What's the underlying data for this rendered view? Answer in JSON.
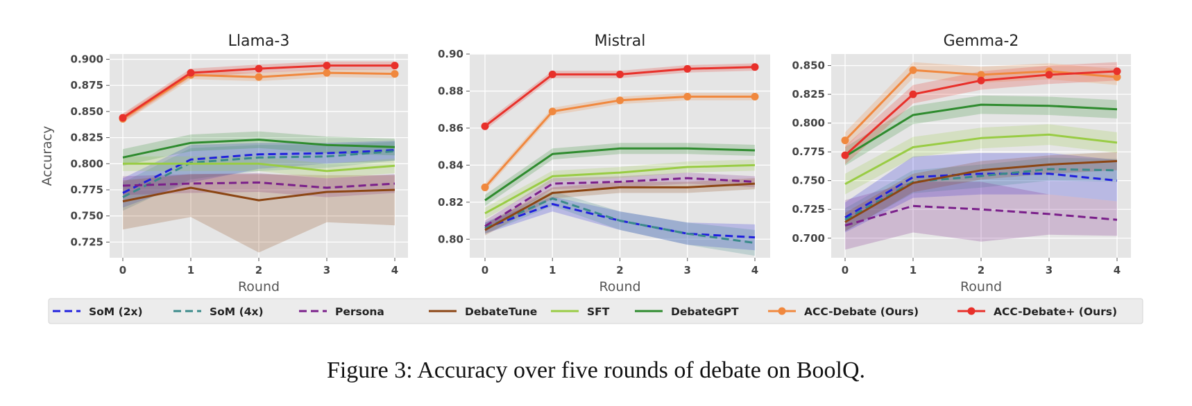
{
  "caption": "Figure 3: Accuracy over five rounds of debate on BoolQ.",
  "legend_placement": "bottom",
  "chart_data": [
    {
      "type": "line",
      "title": "Llama-3",
      "xlabel": "Round",
      "ylabel": "Accuracy",
      "x": [
        0,
        1,
        2,
        3,
        4
      ],
      "xticks": [
        "0",
        "1",
        "2",
        "3",
        "4"
      ],
      "ylim": [
        0.71,
        0.905
      ],
      "yticks": [
        "0.725",
        "0.750",
        "0.775",
        "0.800",
        "0.825",
        "0.850",
        "0.875",
        "0.900"
      ],
      "grid": true,
      "series": [
        {
          "name": "SoM (2x)",
          "color": "#1f1fdd",
          "dash": true,
          "values": [
            0.772,
            0.804,
            0.809,
            0.81,
            0.813
          ],
          "low": [
            0.758,
            0.782,
            0.795,
            0.8,
            0.803
          ],
          "high": [
            0.786,
            0.818,
            0.82,
            0.82,
            0.822
          ]
        },
        {
          "name": "SoM (4x)",
          "color": "#3a8a8a",
          "dash": true,
          "values": [
            0.768,
            0.801,
            0.806,
            0.807,
            0.812
          ],
          "low": [
            0.755,
            0.785,
            0.793,
            0.796,
            0.803
          ],
          "high": [
            0.782,
            0.815,
            0.818,
            0.818,
            0.821
          ]
        },
        {
          "name": "Persona",
          "color": "#7a1f8a",
          "dash": true,
          "values": [
            0.779,
            0.781,
            0.782,
            0.777,
            0.781
          ],
          "low": [
            0.77,
            0.772,
            0.773,
            0.768,
            0.772
          ],
          "high": [
            0.788,
            0.79,
            0.791,
            0.786,
            0.79
          ]
        },
        {
          "name": "DebateTune",
          "color": "#8b4513",
          "dash": false,
          "values": [
            0.764,
            0.777,
            0.765,
            0.773,
            0.775
          ],
          "low": [
            0.737,
            0.749,
            0.715,
            0.744,
            0.741
          ],
          "high": [
            0.784,
            0.79,
            0.79,
            0.789,
            0.789
          ]
        },
        {
          "name": "SFT",
          "color": "#99cc44",
          "dash": false,
          "values": [
            0.8,
            0.8,
            0.8,
            0.793,
            0.798
          ],
          "low": [
            0.793,
            0.793,
            0.793,
            0.786,
            0.791
          ],
          "high": [
            0.807,
            0.807,
            0.807,
            0.8,
            0.805
          ]
        },
        {
          "name": "DebateGPT",
          "color": "#2e8b2e",
          "dash": false,
          "values": [
            0.806,
            0.82,
            0.823,
            0.818,
            0.816
          ],
          "low": [
            0.798,
            0.812,
            0.815,
            0.81,
            0.808
          ],
          "high": [
            0.814,
            0.828,
            0.831,
            0.826,
            0.824
          ]
        },
        {
          "name": "ACC-Debate (Ours)",
          "color": "#f0883e",
          "dash": false,
          "marker": true,
          "values": [
            0.843,
            0.885,
            0.883,
            0.887,
            0.886
          ],
          "low": [
            0.839,
            0.881,
            0.879,
            0.883,
            0.882
          ],
          "high": [
            0.847,
            0.889,
            0.887,
            0.891,
            0.89
          ]
        },
        {
          "name": "ACC-Debate+ (Ours)",
          "color": "#e8302a",
          "dash": false,
          "marker": true,
          "values": [
            0.844,
            0.887,
            0.891,
            0.894,
            0.894
          ],
          "low": [
            0.84,
            0.883,
            0.887,
            0.89,
            0.89
          ],
          "high": [
            0.848,
            0.891,
            0.895,
            0.898,
            0.898
          ]
        }
      ]
    },
    {
      "type": "line",
      "title": "Mistral",
      "xlabel": "Round",
      "ylabel": "",
      "x": [
        0,
        1,
        2,
        3,
        4
      ],
      "xticks": [
        "0",
        "1",
        "2",
        "3",
        "4"
      ],
      "ylim": [
        0.79,
        0.9
      ],
      "yticks": [
        "0.80",
        "0.82",
        "0.84",
        "0.86",
        "0.88",
        "0.90"
      ],
      "grid": true,
      "series": [
        {
          "name": "SoM (2x)",
          "color": "#1f1fdd",
          "dash": true,
          "values": [
            0.806,
            0.819,
            0.81,
            0.803,
            0.801
          ],
          "low": [
            0.803,
            0.815,
            0.805,
            0.797,
            0.794
          ],
          "high": [
            0.809,
            0.823,
            0.815,
            0.809,
            0.808
          ]
        },
        {
          "name": "SoM (4x)",
          "color": "#3a8a8a",
          "dash": true,
          "values": [
            0.806,
            0.822,
            0.81,
            0.803,
            0.798
          ],
          "low": [
            0.803,
            0.818,
            0.805,
            0.797,
            0.791
          ],
          "high": [
            0.809,
            0.826,
            0.815,
            0.809,
            0.805
          ]
        },
        {
          "name": "Persona",
          "color": "#7a1f8a",
          "dash": true,
          "values": [
            0.807,
            0.83,
            0.831,
            0.833,
            0.831
          ],
          "low": [
            0.804,
            0.827,
            0.828,
            0.83,
            0.828
          ],
          "high": [
            0.81,
            0.833,
            0.834,
            0.836,
            0.834
          ]
        },
        {
          "name": "DebateTune",
          "color": "#8b4513",
          "dash": false,
          "values": [
            0.805,
            0.825,
            0.828,
            0.828,
            0.83
          ],
          "low": [
            0.802,
            0.822,
            0.825,
            0.825,
            0.827
          ],
          "high": [
            0.808,
            0.828,
            0.831,
            0.831,
            0.833
          ]
        },
        {
          "name": "SFT",
          "color": "#99cc44",
          "dash": false,
          "values": [
            0.814,
            0.834,
            0.836,
            0.839,
            0.84
          ],
          "low": [
            0.811,
            0.831,
            0.833,
            0.836,
            0.837
          ],
          "high": [
            0.817,
            0.837,
            0.839,
            0.842,
            0.843
          ]
        },
        {
          "name": "DebateGPT",
          "color": "#2e8b2e",
          "dash": false,
          "values": [
            0.821,
            0.846,
            0.849,
            0.849,
            0.848
          ],
          "low": [
            0.818,
            0.843,
            0.846,
            0.846,
            0.845
          ],
          "high": [
            0.824,
            0.849,
            0.852,
            0.852,
            0.851
          ]
        },
        {
          "name": "ACC-Debate (Ours)",
          "color": "#f0883e",
          "dash": false,
          "marker": true,
          "values": [
            0.828,
            0.869,
            0.875,
            0.877,
            0.877
          ],
          "low": [
            0.826,
            0.867,
            0.873,
            0.875,
            0.875
          ],
          "high": [
            0.83,
            0.871,
            0.877,
            0.879,
            0.879
          ]
        },
        {
          "name": "ACC-Debate+ (Ours)",
          "color": "#e8302a",
          "dash": false,
          "marker": true,
          "values": [
            0.861,
            0.889,
            0.889,
            0.892,
            0.893
          ],
          "low": [
            0.859,
            0.887,
            0.887,
            0.89,
            0.891
          ],
          "high": [
            0.863,
            0.891,
            0.891,
            0.894,
            0.895
          ]
        }
      ]
    },
    {
      "type": "line",
      "title": "Gemma-2",
      "xlabel": "Round",
      "ylabel": "",
      "x": [
        0,
        1,
        2,
        3,
        4
      ],
      "xticks": [
        "0",
        "1",
        "2",
        "3",
        "4"
      ],
      "ylim": [
        0.683,
        0.86
      ],
      "yticks": [
        "0.700",
        "0.725",
        "0.750",
        "0.775",
        "0.800",
        "0.825",
        "0.850"
      ],
      "grid": true,
      "series": [
        {
          "name": "SoM (2x)",
          "color": "#1f1fdd",
          "dash": true,
          "values": [
            0.718,
            0.753,
            0.756,
            0.756,
            0.75
          ],
          "low": [
            0.705,
            0.735,
            0.738,
            0.738,
            0.732
          ],
          "high": [
            0.731,
            0.771,
            0.774,
            0.774,
            0.768
          ]
        },
        {
          "name": "SoM (4x)",
          "color": "#3a8a8a",
          "dash": true,
          "values": [
            0.716,
            0.749,
            0.754,
            0.76,
            0.759
          ],
          "low": [
            0.706,
            0.739,
            0.744,
            0.75,
            0.749
          ],
          "high": [
            0.726,
            0.759,
            0.764,
            0.77,
            0.769
          ]
        },
        {
          "name": "Persona",
          "color": "#7a1f8a",
          "dash": true,
          "values": [
            0.711,
            0.728,
            0.725,
            0.721,
            0.716
          ],
          "low": [
            0.69,
            0.705,
            0.697,
            0.703,
            0.702
          ],
          "high": [
            0.733,
            0.749,
            0.749,
            0.738,
            0.732
          ]
        },
        {
          "name": "DebateTune",
          "color": "#8b4513",
          "dash": false,
          "values": [
            0.714,
            0.748,
            0.759,
            0.764,
            0.767
          ],
          "low": [
            0.706,
            0.74,
            0.751,
            0.756,
            0.759
          ],
          "high": [
            0.722,
            0.756,
            0.767,
            0.772,
            0.775
          ]
        },
        {
          "name": "SFT",
          "color": "#99cc44",
          "dash": false,
          "values": [
            0.747,
            0.779,
            0.787,
            0.79,
            0.783
          ],
          "low": [
            0.738,
            0.77,
            0.778,
            0.781,
            0.774
          ],
          "high": [
            0.756,
            0.788,
            0.796,
            0.799,
            0.792
          ]
        },
        {
          "name": "DebateGPT",
          "color": "#2e8b2e",
          "dash": false,
          "values": [
            0.771,
            0.807,
            0.816,
            0.815,
            0.812
          ],
          "low": [
            0.763,
            0.799,
            0.808,
            0.807,
            0.804
          ],
          "high": [
            0.779,
            0.815,
            0.824,
            0.823,
            0.82
          ]
        },
        {
          "name": "ACC-Debate (Ours)",
          "color": "#f0883e",
          "dash": false,
          "marker": true,
          "values": [
            0.785,
            0.846,
            0.842,
            0.845,
            0.84
          ],
          "low": [
            0.778,
            0.839,
            0.835,
            0.838,
            0.833
          ],
          "high": [
            0.792,
            0.853,
            0.849,
            0.852,
            0.847
          ]
        },
        {
          "name": "ACC-Debate+ (Ours)",
          "color": "#e8302a",
          "dash": false,
          "marker": true,
          "values": [
            0.772,
            0.825,
            0.837,
            0.842,
            0.845
          ],
          "low": [
            0.764,
            0.817,
            0.829,
            0.834,
            0.837
          ],
          "high": [
            0.78,
            0.833,
            0.845,
            0.85,
            0.853
          ]
        }
      ]
    }
  ]
}
